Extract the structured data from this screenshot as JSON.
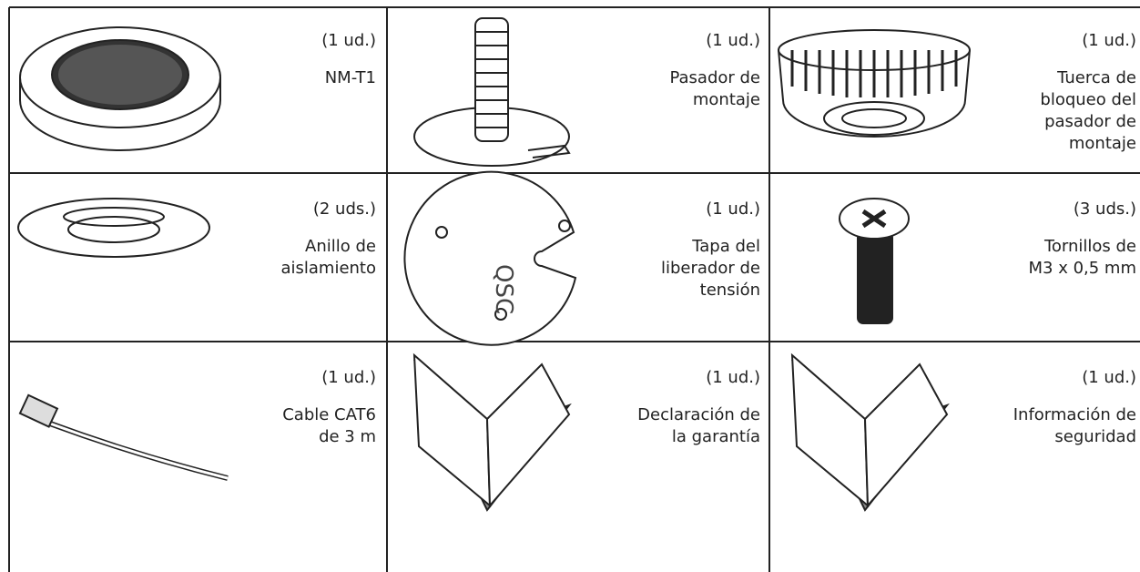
{
  "items": [
    {
      "qty": "(1 ud.)",
      "name": [
        "NM-T1"
      ]
    },
    {
      "qty": "(1 ud.)",
      "name": [
        "Pasador de",
        "montaje"
      ]
    },
    {
      "qty": "(1 ud.)",
      "name": [
        "Tuerca de",
        "bloqueo del",
        "pasador de",
        "montaje"
      ]
    },
    {
      "qty": "(2 uds.)",
      "name": [
        "Anillo de",
        "aislamiento"
      ]
    },
    {
      "qty": "(1 ud.)",
      "name": [
        "Tapa del",
        "liberador de",
        "tensión"
      ]
    },
    {
      "qty": "(3 uds.)",
      "name": [
        "Tornillos de",
        "M3 x 0,5 mm"
      ]
    },
    {
      "qty": "(1 ud.)",
      "name": [
        "Cable CAT6",
        "de 3 m"
      ]
    },
    {
      "qty": "(1 ud.)",
      "name": [
        "Declaración de",
        "la garantía"
      ]
    },
    {
      "qty": "(1 ud.)",
      "name": [
        "Información de",
        "seguridad"
      ]
    }
  ]
}
